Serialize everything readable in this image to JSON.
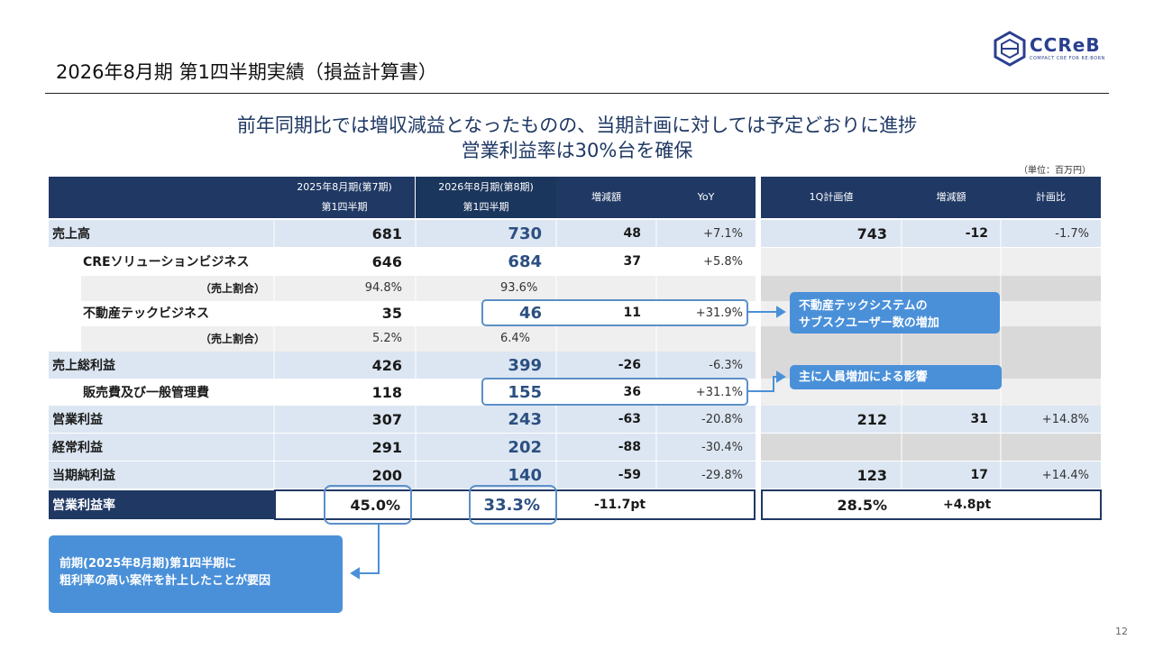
{
  "page": {
    "title": "2026年8月期 第1四半期実績（損益計算書）",
    "headline_1": "前年同期比では増収減益となったものの、当期計画に対しては予定どおりに進捗",
    "headline_2": "営業利益率は30%台を確保",
    "unit": "（単位：百万円）",
    "page_number": "12"
  },
  "logo": {
    "text": "CCReB",
    "tagline": "COMPACT CRE FOR RE:BORN"
  },
  "table": {
    "headers": {
      "prev_1": "2025年8月期(第7期)",
      "prev_2": "第1四半期",
      "curr_1": "2026年8月期(第8期)",
      "curr_2": "第1四半期",
      "diff": "増減額",
      "yoy": "YoY",
      "plan": "1Q計画値",
      "plan_diff": "増減額",
      "plan_ratio": "計画比"
    },
    "rows": [
      {
        "label": "売上高",
        "prev": "681",
        "curr": "730",
        "diff": "48",
        "yoy": "+7.1%",
        "plan": "743",
        "plan_diff": "-12",
        "plan_ratio": "-1.7%"
      },
      {
        "label": "CREソリューションビジネス",
        "prev": "646",
        "curr": "684",
        "diff": "37",
        "yoy": "+5.8%"
      },
      {
        "label": "（売上割合）",
        "prev": "94.8%",
        "curr": "93.6%"
      },
      {
        "label": "不動産テックビジネス",
        "prev": "35",
        "curr": "46",
        "diff": "11",
        "yoy": "+31.9%"
      },
      {
        "label": "（売上割合）",
        "prev": "5.2%",
        "curr": "6.4%"
      },
      {
        "label": "売上総利益",
        "prev": "426",
        "curr": "399",
        "diff": "-26",
        "yoy": "-6.3%"
      },
      {
        "label": "販売費及び一般管理費",
        "prev": "118",
        "curr": "155",
        "diff": "36",
        "yoy": "+31.1%"
      },
      {
        "label": "営業利益",
        "prev": "307",
        "curr": "243",
        "diff": "-63",
        "yoy": "-20.8%",
        "plan": "212",
        "plan_diff": "31",
        "plan_ratio": "+14.8%"
      },
      {
        "label": "経常利益",
        "prev": "291",
        "curr": "202",
        "diff": "-88",
        "yoy": "-30.4%"
      },
      {
        "label": "当期純利益",
        "prev": "200",
        "curr": "140",
        "diff": "-59",
        "yoy": "-29.8%",
        "plan": "123",
        "plan_diff": "17",
        "plan_ratio": "+14.4%"
      },
      {
        "label": "営業利益率",
        "prev": "45.0%",
        "curr": "33.3%",
        "diff": "-11.7pt",
        "plan": "28.5%",
        "plan_diff": "+4.8pt"
      }
    ]
  },
  "callouts": {
    "tech_1": "不動産テックシステムの",
    "tech_2": "サブスクユーザー数の増加",
    "sga": "主に人員増加による影響",
    "margin_1": "前期(2025年8月期)第1四半期に",
    "margin_2": "粗利率の高い案件を計上したことが要因"
  },
  "colors": {
    "header": "#1f3864",
    "accent": "#4a90d9",
    "row_light": "#dce6f2",
    "row_gray": "#d9d9d9",
    "row_pale": "#efefef"
  }
}
